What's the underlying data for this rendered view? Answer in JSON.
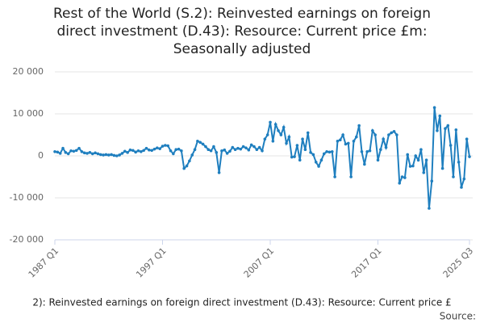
{
  "chart_data": {
    "type": "line",
    "title": "Rest of the World (S.2): Reinvested earnings on foreign direct investment (D.43): Resource: Current price £m: Seasonally adjusted",
    "legend": "2): Reinvested earnings on foreign direct investment (D.43): Resource: Current price £",
    "source": "Source:",
    "categories": [
      "1987 Q1",
      null,
      null,
      null,
      null,
      null,
      null,
      null,
      null,
      null,
      null,
      null,
      null,
      null,
      null,
      null,
      null,
      null,
      null,
      null,
      null,
      null,
      null,
      null,
      null,
      null,
      null,
      null,
      null,
      null,
      null,
      null,
      null,
      null,
      null,
      null,
      null,
      null,
      null,
      null,
      "1997 Q1",
      null,
      null,
      null,
      null,
      null,
      null,
      null,
      null,
      null,
      null,
      null,
      null,
      null,
      null,
      null,
      null,
      null,
      null,
      null,
      null,
      null,
      null,
      null,
      null,
      null,
      null,
      null,
      null,
      null,
      null,
      null,
      null,
      null,
      null,
      null,
      null,
      null,
      null,
      null,
      "2007 Q1",
      null,
      null,
      null,
      null,
      null,
      null,
      null,
      null,
      null,
      null,
      null,
      null,
      null,
      null,
      null,
      null,
      null,
      null,
      null,
      null,
      null,
      null,
      null,
      null,
      null,
      null,
      null,
      null,
      null,
      null,
      null,
      null,
      null,
      null,
      null,
      null,
      null,
      null,
      null,
      "2017 Q1",
      null,
      null,
      null,
      null,
      null,
      null,
      null,
      null,
      null,
      null,
      null,
      null,
      null,
      null,
      null,
      null,
      null,
      null,
      null,
      null,
      null,
      null,
      null,
      null,
      null,
      null,
      null,
      null,
      null,
      null,
      null,
      null,
      null,
      "2025 Q3"
    ],
    "series": [
      {
        "name": "Rest of the World (S.2): Reinvested earnings on foreign direct investment (D.43): Resource: Current price £m: Seasonally adjusted",
        "color": "#1f7fbf",
        "values": [
          1000,
          900,
          600,
          1800,
          800,
          500,
          1200,
          1100,
          1300,
          1800,
          1000,
          700,
          600,
          800,
          500,
          700,
          500,
          300,
          200,
          300,
          200,
          300,
          100,
          0,
          200,
          600,
          1100,
          800,
          1400,
          1300,
          900,
          1200,
          1000,
          1300,
          1800,
          1400,
          1300,
          1600,
          1900,
          1700,
          2300,
          2500,
          2400,
          1200,
          500,
          1500,
          1600,
          1200,
          -3000,
          -2400,
          -1200,
          200,
          1500,
          3500,
          3200,
          2800,
          2200,
          1500,
          1200,
          2200,
          800,
          -4000,
          1200,
          1400,
          600,
          1100,
          2000,
          1500,
          1800,
          1600,
          2200,
          1900,
          1400,
          2600,
          2200,
          1500,
          2000,
          1200,
          4000,
          5000,
          8000,
          3500,
          7500,
          6000,
          5000,
          6800,
          3000,
          4500,
          -300,
          -200,
          2500,
          -1000,
          4000,
          1500,
          5500,
          800,
          300,
          -1500,
          -2500,
          -1000,
          500,
          1000,
          900,
          1000,
          -5000,
          3500,
          3800,
          5000,
          2800,
          3000,
          -5000,
          3500,
          4500,
          7200,
          1000,
          -2000,
          1000,
          1200,
          6000,
          5000,
          -1000,
          1500,
          4000,
          2000,
          5000,
          5500,
          5800,
          5000,
          -6500,
          -5000,
          -5200,
          300,
          -2500,
          -2400,
          0,
          -1000,
          1500,
          -4000,
          -1000,
          -12500,
          -6000,
          11500,
          6000,
          9500,
          -3000,
          6500,
          7200,
          2500,
          -5000,
          6200,
          -1500,
          -7500,
          -5500,
          4000,
          -200
        ]
      }
    ],
    "ylim": [
      -20000,
      20000
    ],
    "yticks": [
      {
        "value": -20000,
        "label": "-20 000"
      },
      {
        "value": -10000,
        "label": "-10 000"
      },
      0,
      {
        "value": 10000,
        "label": "10 000"
      },
      {
        "value": 20000,
        "label": "20 000"
      }
    ],
    "grid": true
  }
}
